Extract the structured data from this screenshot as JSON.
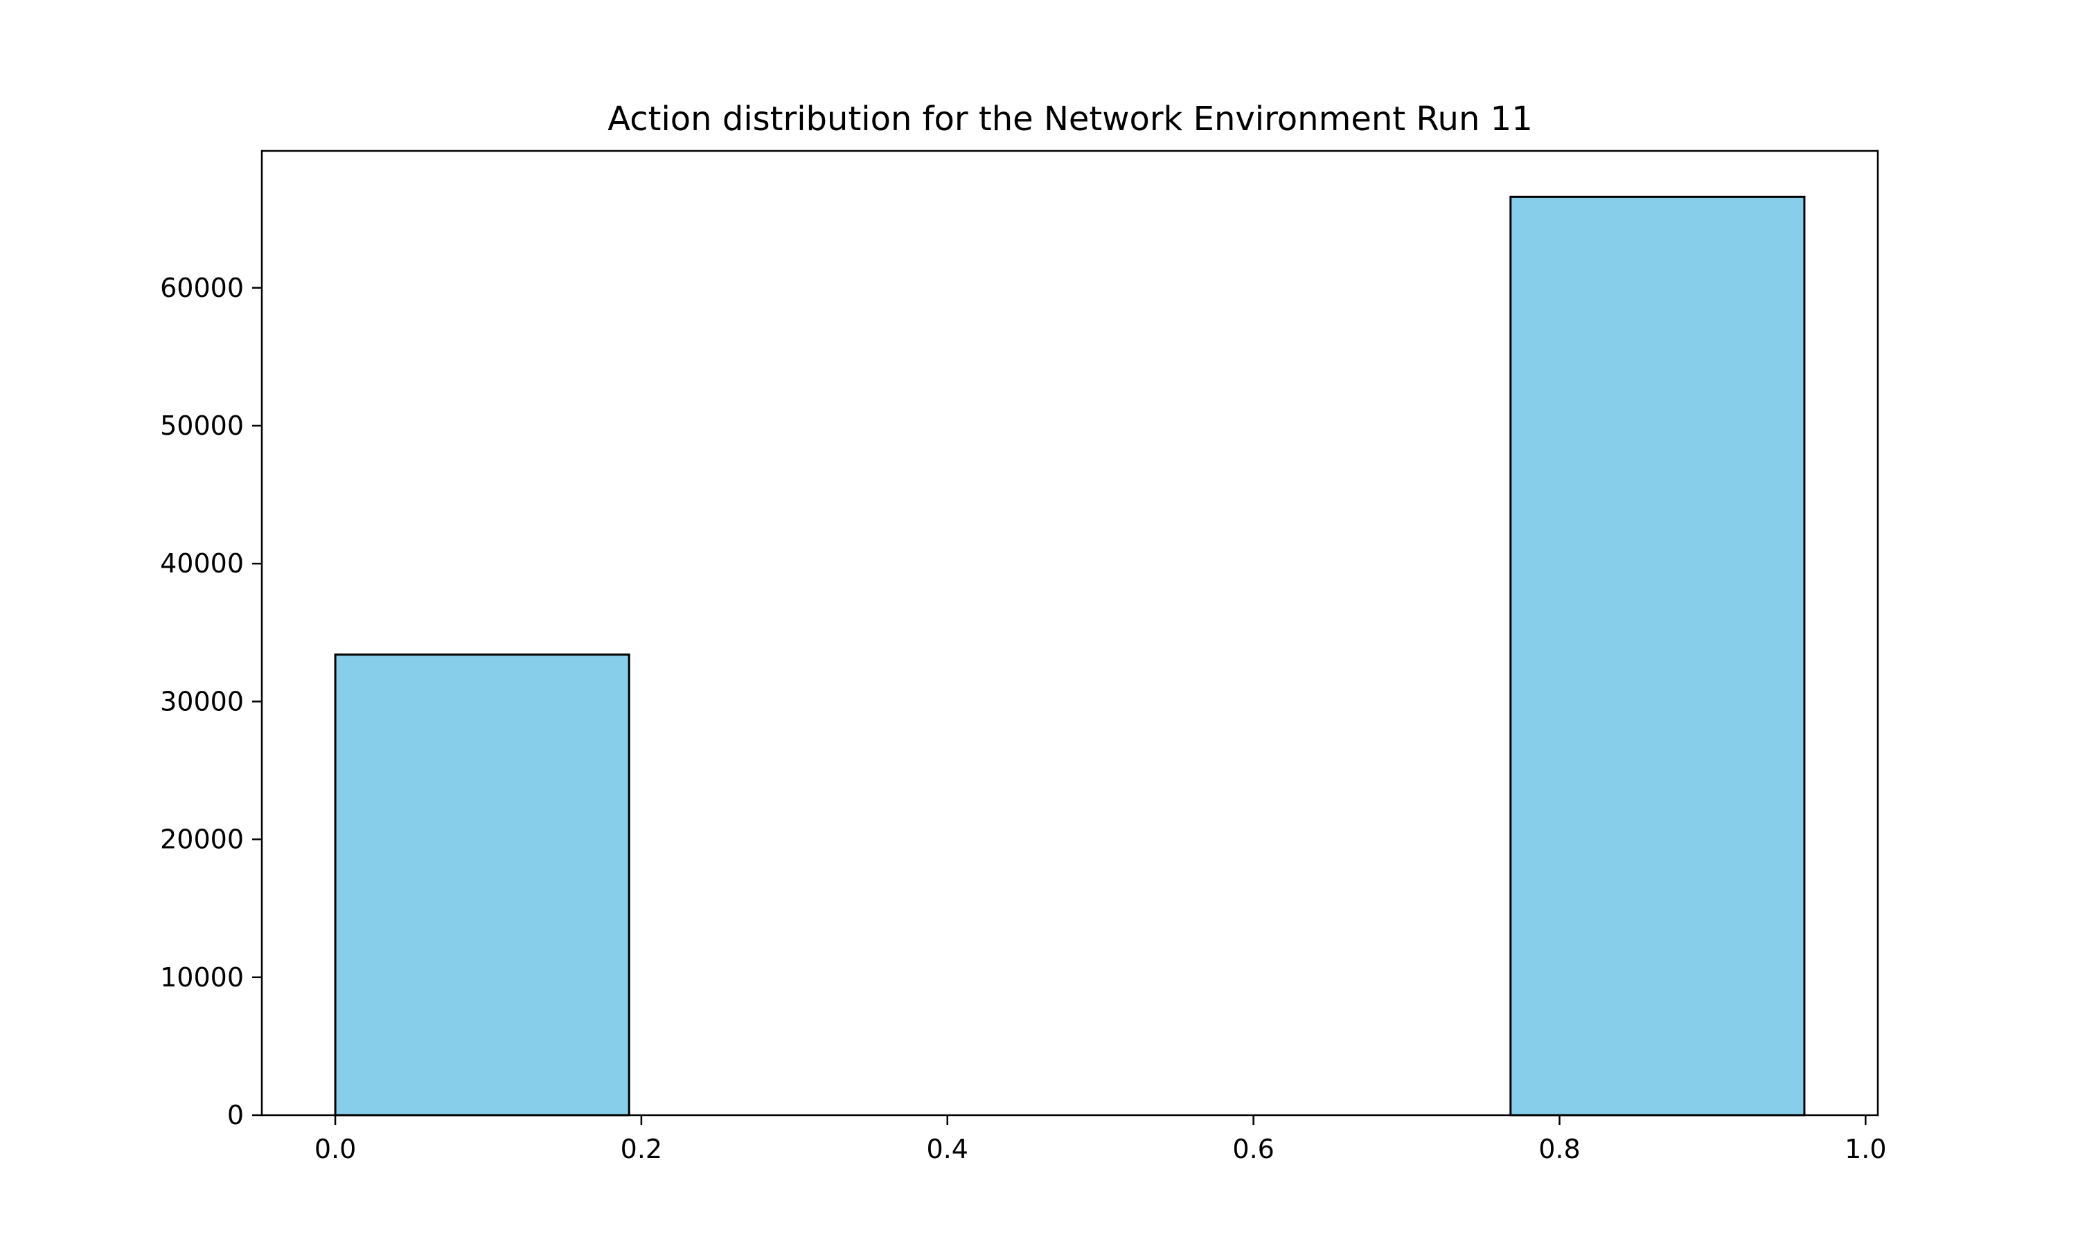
{
  "chart_data": {
    "type": "bar",
    "title": "Action distribution for the Network Environment Run 11",
    "xlabel": "",
    "ylabel": "",
    "bin_edges": [
      0.0,
      0.192,
      0.384,
      0.576,
      0.768,
      0.96
    ],
    "values": [
      33400,
      0,
      0,
      0,
      66600
    ],
    "xlim": [
      -0.048,
      1.008
    ],
    "ylim": [
      0,
      69930
    ],
    "xticks": [
      0.0,
      0.2,
      0.4,
      0.6,
      0.8,
      1.0
    ],
    "xtick_labels": [
      "0.0",
      "0.2",
      "0.4",
      "0.6",
      "0.8",
      "1.0"
    ],
    "yticks": [
      0,
      10000,
      20000,
      30000,
      40000,
      50000,
      60000
    ],
    "ytick_labels": [
      "0",
      "10000",
      "20000",
      "30000",
      "40000",
      "50000",
      "60000"
    ],
    "bar_color": "#87CEEB",
    "edge_color": "#000000",
    "grid": false,
    "legend": "none"
  }
}
